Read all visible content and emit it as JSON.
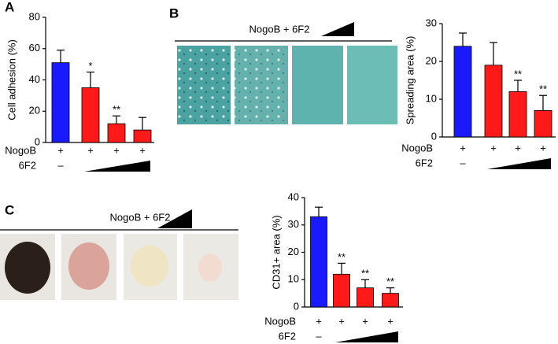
{
  "chart_data": [
    {
      "type": "bar",
      "panel": "A",
      "ylabel": "Cell adhesion (%)",
      "categories": [
        null,
        null,
        null,
        null
      ],
      "values": [
        51,
        35,
        12,
        8
      ],
      "errors": [
        8,
        10,
        5,
        8
      ],
      "colors": [
        "#1a1aff",
        "#ff1a1a",
        "#ff1a1a",
        "#ff1a1a"
      ],
      "significance": [
        null,
        "*",
        "**",
        null
      ],
      "ylim": [
        0,
        80
      ],
      "yticks": [
        0,
        20,
        40,
        60,
        80
      ],
      "rows": [
        {
          "label": "NogoB",
          "marks": [
            "+",
            "+",
            "+",
            "+"
          ]
        },
        {
          "label": "6F2",
          "marks": [
            "–",
            null,
            null,
            null
          ]
        }
      ]
    },
    {
      "type": "bar",
      "panel": "B",
      "ylabel": "Spreading area (%)",
      "categories": [
        null,
        null,
        null,
        null
      ],
      "values": [
        24,
        19,
        12,
        7
      ],
      "errors": [
        3.5,
        6,
        3,
        4
      ],
      "colors": [
        "#1a1aff",
        "#ff1a1a",
        "#ff1a1a",
        "#ff1a1a"
      ],
      "significance": [
        null,
        null,
        "**",
        "**"
      ],
      "ylim": [
        0,
        30
      ],
      "yticks": [
        0,
        10,
        20,
        30
      ],
      "rows": [
        {
          "label": "NogoB",
          "marks": [
            "+",
            "+",
            "+",
            "+"
          ]
        },
        {
          "label": "6F2",
          "marks": [
            "–",
            null,
            null,
            null
          ]
        }
      ]
    },
    {
      "type": "bar",
      "panel": "C",
      "ylabel": "CD31+ area (%)",
      "categories": [
        null,
        null,
        null,
        null
      ],
      "values": [
        33,
        12,
        7,
        5
      ],
      "errors": [
        3.5,
        4,
        3,
        2
      ],
      "colors": [
        "#1a1aff",
        "#ff1a1a",
        "#ff1a1a",
        "#ff1a1a"
      ],
      "significance": [
        null,
        "**",
        "**",
        "**"
      ],
      "ylim": [
        0,
        40
      ],
      "yticks": [
        0,
        10,
        20,
        30,
        40
      ],
      "rows": [
        {
          "label": "NogoB",
          "marks": [
            "+",
            "+",
            "+",
            "+"
          ]
        },
        {
          "label": "6F2",
          "marks": [
            "–",
            null,
            null,
            null
          ]
        }
      ]
    }
  ],
  "image_strips": [
    {
      "caption": "NogoB + 6F2"
    },
    {
      "caption": "NogoB + 6F2"
    }
  ]
}
